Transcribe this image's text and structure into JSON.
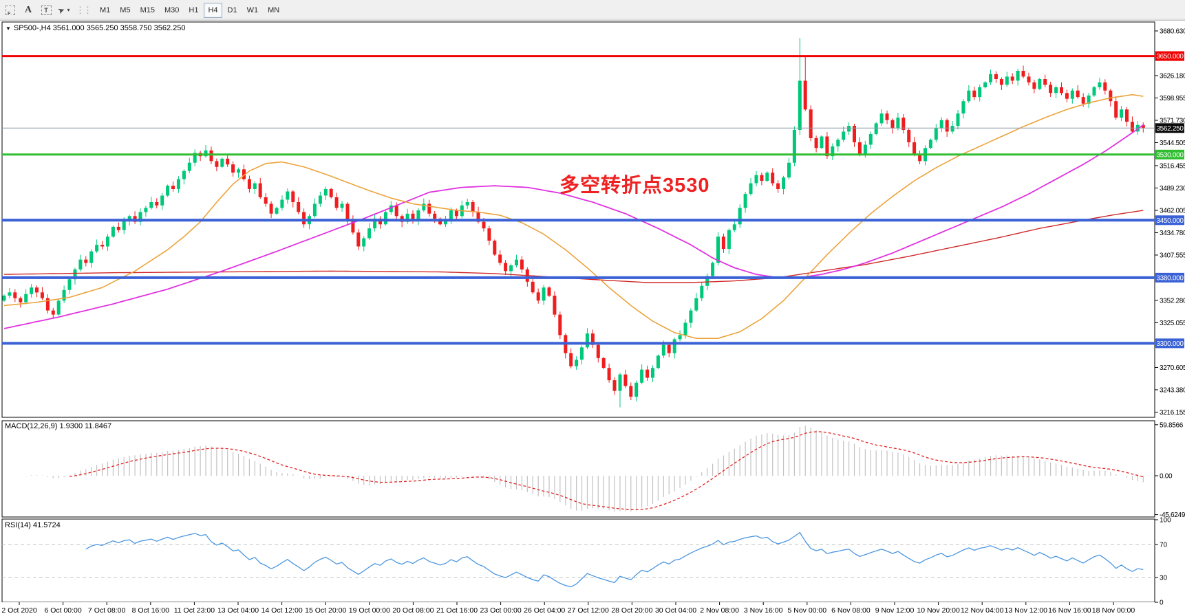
{
  "toolbar": {
    "tools": {
      "frame": "F",
      "label": "A",
      "textbox": "T",
      "arrows_icon": "➤",
      "caret": "▾"
    },
    "grip": "⋮⋮",
    "timeframes": [
      "M1",
      "M5",
      "M15",
      "M30",
      "H1",
      "H4",
      "D1",
      "W1",
      "MN"
    ],
    "active_timeframe": "H4"
  },
  "chart_header": {
    "dropdown_icon": "▼",
    "symbol_line": "SP500-,H4  3561.000 3565.250 3558.750 3562.250"
  },
  "annotation": {
    "text": "多空转折点3530",
    "color": "#ee2222"
  },
  "panes": {
    "macd_label": "MACD(12,26,9) 1.9300 11.8467",
    "rsi_label": "RSI(14) 41.5724"
  },
  "chart_data": {
    "type": "candlestick",
    "symbol": "SP500-",
    "period": "H4",
    "quote": {
      "open": 3561.0,
      "high": 3565.25,
      "low": 3558.75,
      "close": 3562.25
    },
    "candle_up_color": "#00c87a",
    "candle_down_color": "#ef1d1d",
    "first_open": 3352,
    "candles_close": [
      3358,
      3362,
      3355,
      3350,
      3360,
      3368,
      3362,
      3355,
      3340,
      3335,
      3352,
      3365,
      3378,
      3390,
      3402,
      3398,
      3412,
      3420,
      3418,
      3430,
      3442,
      3438,
      3450,
      3455,
      3448,
      3460,
      3465,
      3472,
      3468,
      3480,
      3492,
      3488,
      3500,
      3510,
      3520,
      3532,
      3528,
      3535,
      3522,
      3515,
      3525,
      3518,
      3508,
      3512,
      3500,
      3488,
      3495,
      3478,
      3470,
      3458,
      3465,
      3475,
      3485,
      3472,
      3460,
      3445,
      3455,
      3470,
      3480,
      3488,
      3478,
      3465,
      3470,
      3450,
      3435,
      3418,
      3428,
      3440,
      3452,
      3445,
      3460,
      3468,
      3455,
      3448,
      3458,
      3450,
      3462,
      3470,
      3458,
      3452,
      3445,
      3450,
      3462,
      3455,
      3468,
      3472,
      3460,
      3448,
      3440,
      3425,
      3408,
      3398,
      3388,
      3395,
      3402,
      3390,
      3375,
      3362,
      3352,
      3368,
      3358,
      3335,
      3310,
      3288,
      3272,
      3280,
      3295,
      3312,
      3298,
      3282,
      3270,
      3255,
      3242,
      3262,
      3248,
      3235,
      3252,
      3268,
      3258,
      3270,
      3285,
      3298,
      3288,
      3305,
      3310,
      3325,
      3340,
      3355,
      3370,
      3382,
      3398,
      3430,
      3415,
      3438,
      3445,
      3465,
      3482,
      3495,
      3505,
      3498,
      3508,
      3495,
      3488,
      3502,
      3520,
      3560,
      3620,
      3585,
      3550,
      3538,
      3552,
      3528,
      3540,
      3548,
      3558,
      3565,
      3545,
      3530,
      3542,
      3555,
      3568,
      3580,
      3572,
      3562,
      3575,
      3560,
      3545,
      3530,
      3522,
      3538,
      3548,
      3562,
      3572,
      3558,
      3565,
      3580,
      3595,
      3608,
      3600,
      3612,
      3618,
      3628,
      3622,
      3615,
      3625,
      3620,
      3632,
      3625,
      3618,
      3610,
      3622,
      3615,
      3605,
      3612,
      3605,
      3598,
      3608,
      3600,
      3592,
      3602,
      3612,
      3618,
      3608,
      3595,
      3575,
      3585,
      3570,
      3558,
      3566,
      3562.25
    ],
    "wick_overrides": {
      "113": {
        "low": 3222
      },
      "146": {
        "high": 3672
      },
      "147": {
        "high": 3650
      }
    },
    "price_axis_ticks": [
      "3680.630",
      "3626.180",
      "3598.955",
      "3571.730",
      "3544.505",
      "3516.455",
      "3489.230",
      "3462.005",
      "3434.780",
      "3407.555",
      "3352.280",
      "3325.055",
      "3270.605",
      "3243.380",
      "3216.155"
    ],
    "price_levels": [
      {
        "price": 3650.0,
        "label": "3650.000",
        "color": "#f00000",
        "thickness": 3
      },
      {
        "price": 3530.0,
        "label": "3530.000",
        "color": "#2fbe2f",
        "thickness": 3
      },
      {
        "price": 3450.0,
        "label": "3450.000",
        "color": "#3a61d6",
        "thickness": 4
      },
      {
        "price": 3380.0,
        "label": "3380.000",
        "color": "#3a61d6",
        "thickness": 4
      },
      {
        "price": 3300.0,
        "label": "3300.000",
        "color": "#3a61d6",
        "thickness": 4
      }
    ],
    "current_price": {
      "value": 3562.25,
      "label": "3562.250",
      "line_color": "#8a99a8",
      "badge_color": "#0a0a0a"
    },
    "moving_averages": [
      {
        "name": "slow-ma",
        "color": "#d02828",
        "width": 1.4,
        "points": [
          [
            0,
            3384
          ],
          [
            20,
            3386
          ],
          [
            40,
            3387
          ],
          [
            60,
            3388
          ],
          [
            80,
            3387
          ],
          [
            90,
            3385
          ],
          [
            100,
            3381
          ],
          [
            110,
            3377
          ],
          [
            118,
            3374
          ],
          [
            126,
            3374
          ],
          [
            134,
            3376
          ],
          [
            142,
            3380
          ],
          [
            150,
            3388
          ],
          [
            158,
            3396
          ],
          [
            166,
            3406
          ],
          [
            174,
            3417
          ],
          [
            182,
            3428
          ],
          [
            190,
            3440
          ],
          [
            198,
            3450
          ],
          [
            204,
            3457
          ],
          [
            209,
            3462
          ]
        ]
      },
      {
        "name": "medium-ma",
        "color": "#e032e0",
        "width": 1.8,
        "points": [
          [
            0,
            3318
          ],
          [
            10,
            3332
          ],
          [
            20,
            3348
          ],
          [
            30,
            3366
          ],
          [
            40,
            3388
          ],
          [
            50,
            3412
          ],
          [
            58,
            3432
          ],
          [
            66,
            3452
          ],
          [
            72,
            3468
          ],
          [
            78,
            3484
          ],
          [
            84,
            3490
          ],
          [
            90,
            3492
          ],
          [
            96,
            3490
          ],
          [
            102,
            3483
          ],
          [
            108,
            3472
          ],
          [
            114,
            3458
          ],
          [
            120,
            3440
          ],
          [
            126,
            3420
          ],
          [
            130,
            3404
          ],
          [
            134,
            3392
          ],
          [
            138,
            3384
          ],
          [
            142,
            3380
          ],
          [
            146,
            3380
          ],
          [
            150,
            3384
          ],
          [
            154,
            3390
          ],
          [
            158,
            3398
          ],
          [
            163,
            3410
          ],
          [
            168,
            3424
          ],
          [
            173,
            3438
          ],
          [
            178,
            3452
          ],
          [
            183,
            3466
          ],
          [
            188,
            3482
          ],
          [
            193,
            3500
          ],
          [
            198,
            3518
          ],
          [
            202,
            3534
          ],
          [
            206,
            3552
          ],
          [
            209,
            3566
          ]
        ]
      },
      {
        "name": "fast-ma",
        "color": "#eca33c",
        "width": 1.6,
        "points": [
          [
            0,
            3346
          ],
          [
            6,
            3350
          ],
          [
            12,
            3356
          ],
          [
            18,
            3368
          ],
          [
            24,
            3388
          ],
          [
            30,
            3414
          ],
          [
            33,
            3430
          ],
          [
            36,
            3448
          ],
          [
            39,
            3472
          ],
          [
            42,
            3494
          ],
          [
            45,
            3510
          ],
          [
            48,
            3519
          ],
          [
            51,
            3521
          ],
          [
            55,
            3515
          ],
          [
            59,
            3506
          ],
          [
            63,
            3496
          ],
          [
            67,
            3486
          ],
          [
            71,
            3477
          ],
          [
            75,
            3470
          ],
          [
            79,
            3466
          ],
          [
            83,
            3462
          ],
          [
            87,
            3460
          ],
          [
            91,
            3456
          ],
          [
            95,
            3447
          ],
          [
            99,
            3433
          ],
          [
            103,
            3414
          ],
          [
            107,
            3392
          ],
          [
            111,
            3368
          ],
          [
            115,
            3346
          ],
          [
            119,
            3327
          ],
          [
            123,
            3313
          ],
          [
            127,
            3306
          ],
          [
            131,
            3306
          ],
          [
            135,
            3314
          ],
          [
            139,
            3330
          ],
          [
            143,
            3352
          ],
          [
            147,
            3380
          ],
          [
            151,
            3408
          ],
          [
            155,
            3434
          ],
          [
            159,
            3458
          ],
          [
            163,
            3479
          ],
          [
            167,
            3498
          ],
          [
            171,
            3514
          ],
          [
            175,
            3528
          ],
          [
            179,
            3540
          ],
          [
            183,
            3552
          ],
          [
            187,
            3564
          ],
          [
            191,
            3575
          ],
          [
            195,
            3585
          ],
          [
            199,
            3593
          ],
          [
            203,
            3599
          ],
          [
            207,
            3603
          ],
          [
            209,
            3601
          ]
        ]
      }
    ],
    "macd": {
      "params": "12,26,9",
      "value_main": 1.93,
      "value_signal": 11.8467,
      "axis": [
        {
          "label": "59.8566",
          "value": 59.8566
        },
        {
          "label": "0.00",
          "value": 0
        },
        {
          "label": "-45.6249",
          "value": -45.6249
        }
      ],
      "histogram_color": "#c2c2c2",
      "signal_color": "#e02020"
    },
    "rsi": {
      "period": 14,
      "value": 41.5724,
      "axis": [
        {
          "label": "100",
          "value": 100
        },
        {
          "label": "70",
          "value": 70
        },
        {
          "label": "30",
          "value": 30
        },
        {
          "label": "0",
          "value": 0
        }
      ],
      "levels": [
        70,
        30
      ],
      "level_color": "#c0c0c0",
      "line_color": "#4a96e0"
    },
    "date_labels": [
      "2 Oct 2020",
      "6 Oct 00:00",
      "7 Oct 08:00",
      "8 Oct 16:00",
      "11 Oct 23:00",
      "13 Oct 04:00",
      "14 Oct 12:00",
      "15 Oct 20:00",
      "19 Oct 00:00",
      "20 Oct 08:00",
      "21 Oct 16:00",
      "23 Oct 00:00",
      "26 Oct 04:00",
      "27 Oct 12:00",
      "28 Oct 20:00",
      "30 Oct 04:00",
      "2 Nov 08:00",
      "3 Nov 16:00",
      "5 Nov 00:00",
      "6 Nov 08:00",
      "9 Nov 12:00",
      "10 Nov 20:00",
      "12 Nov 04:00",
      "13 Nov 12:00",
      "16 Nov 16:00",
      "18 Nov 00:00"
    ]
  }
}
